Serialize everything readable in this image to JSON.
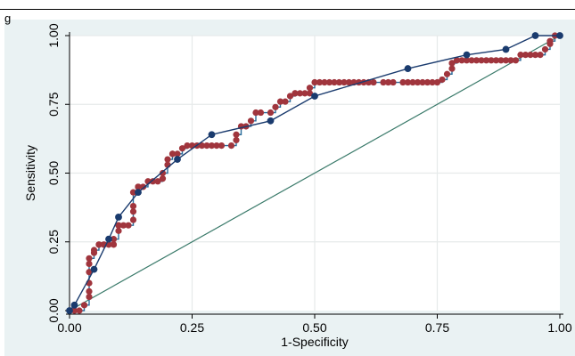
{
  "figure": {
    "label_fragment": "g"
  },
  "chart_data": {
    "type": "line",
    "title": "",
    "xlabel": "1-Specificity",
    "ylabel": "Sensitivity",
    "xlim": [
      0,
      1
    ],
    "ylim": [
      0,
      1
    ],
    "xticks": [
      0,
      0.25,
      0.5,
      0.75,
      1
    ],
    "yticks": [
      0,
      0.25,
      0.5,
      0.75,
      1
    ],
    "xtick_labels": [
      "0.00",
      "0.25",
      "0.50",
      "0.75",
      "1.00"
    ],
    "ytick_labels": [
      "0.00",
      "0.25",
      "0.50",
      "0.75",
      "1.00"
    ],
    "grid": true,
    "legend": "none",
    "series": [
      {
        "style": "line-markers",
        "color": "#1a3b6e",
        "marker_color": "#1a3b6e",
        "x": [
          0,
          0.01,
          0.05,
          0.08,
          0.1,
          0.14,
          0.22,
          0.29,
          0.41,
          0.5,
          0.69,
          0.81,
          0.89,
          0.95,
          1
        ],
        "y": [
          0,
          0.02,
          0.15,
          0.26,
          0.34,
          0.43,
          0.55,
          0.64,
          0.69,
          0.78,
          0.88,
          0.93,
          0.95,
          1,
          1
        ]
      },
      {
        "style": "step-markers",
        "color": "#2a6b9a",
        "marker_color": "#a0353d",
        "x": [
          0,
          0.01,
          0.02,
          0.03,
          0.04,
          0.04,
          0.04,
          0.04,
          0.04,
          0.04,
          0.05,
          0.05,
          0.06,
          0.06,
          0.07,
          0.07,
          0.08,
          0.09,
          0.09,
          0.1,
          0.1,
          0.1,
          0.11,
          0.12,
          0.13,
          0.13,
          0.13,
          0.13,
          0.14,
          0.14,
          0.14,
          0.15,
          0.16,
          0.17,
          0.18,
          0.19,
          0.19,
          0.2,
          0.2,
          0.21,
          0.21,
          0.22,
          0.23,
          0.24,
          0.25,
          0.26,
          0.27,
          0.28,
          0.29,
          0.3,
          0.31,
          0.33,
          0.34,
          0.34,
          0.35,
          0.36,
          0.37,
          0.38,
          0.39,
          0.41,
          0.42,
          0.43,
          0.44,
          0.45,
          0.46,
          0.46,
          0.47,
          0.48,
          0.49,
          0.49,
          0.5,
          0.51,
          0.52,
          0.53,
          0.54,
          0.55,
          0.56,
          0.57,
          0.58,
          0.59,
          0.6,
          0.61,
          0.62,
          0.64,
          0.65,
          0.66,
          0.68,
          0.69,
          0.7,
          0.71,
          0.72,
          0.73,
          0.74,
          0.75,
          0.76,
          0.77,
          0.78,
          0.78,
          0.79,
          0.8,
          0.81,
          0.82,
          0.83,
          0.84,
          0.85,
          0.86,
          0.87,
          0.88,
          0.89,
          0.9,
          0.91,
          0.92,
          0.93,
          0.94,
          0.95,
          0.96,
          0.97,
          0.98,
          0.98,
          0.99,
          1
        ],
        "y": [
          0,
          0,
          0,
          0.02,
          0.05,
          0.07,
          0.1,
          0.14,
          0.17,
          0.19,
          0.21,
          0.22,
          0.24,
          0.24,
          0.24,
          0.24,
          0.24,
          0.24,
          0.26,
          0.29,
          0.31,
          0.31,
          0.31,
          0.31,
          0.33,
          0.36,
          0.38,
          0.43,
          0.45,
          0.45,
          0.45,
          0.45,
          0.47,
          0.47,
          0.47,
          0.48,
          0.5,
          0.53,
          0.55,
          0.57,
          0.57,
          0.57,
          0.59,
          0.6,
          0.6,
          0.6,
          0.6,
          0.6,
          0.6,
          0.6,
          0.6,
          0.6,
          0.62,
          0.64,
          0.67,
          0.67,
          0.69,
          0.72,
          0.72,
          0.72,
          0.74,
          0.76,
          0.76,
          0.78,
          0.79,
          0.79,
          0.79,
          0.79,
          0.79,
          0.81,
          0.83,
          0.83,
          0.83,
          0.83,
          0.83,
          0.83,
          0.83,
          0.83,
          0.83,
          0.83,
          0.83,
          0.83,
          0.83,
          0.83,
          0.83,
          0.83,
          0.83,
          0.83,
          0.83,
          0.83,
          0.83,
          0.83,
          0.83,
          0.83,
          0.84,
          0.86,
          0.88,
          0.9,
          0.91,
          0.91,
          0.91,
          0.91,
          0.91,
          0.91,
          0.91,
          0.91,
          0.91,
          0.91,
          0.91,
          0.91,
          0.91,
          0.93,
          0.93,
          0.93,
          0.93,
          0.93,
          0.95,
          0.97,
          0.98,
          1,
          1
        ]
      },
      {
        "style": "line",
        "color": "#3a7a6a",
        "x": [
          0,
          1
        ],
        "y": [
          0,
          1
        ]
      }
    ]
  }
}
